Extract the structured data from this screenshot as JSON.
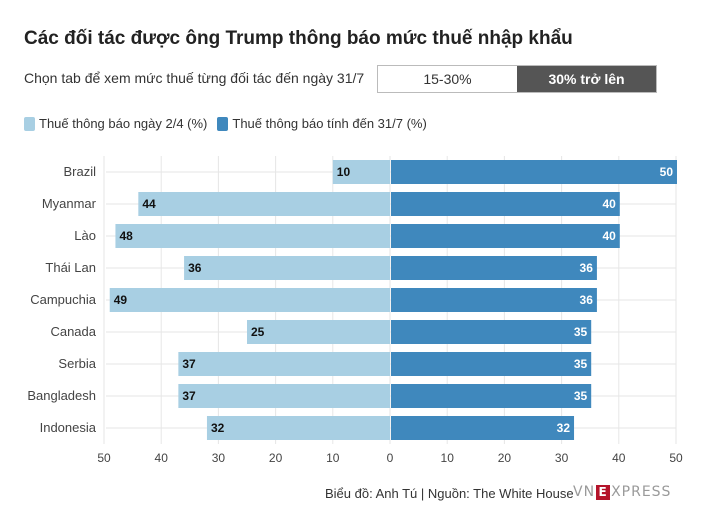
{
  "title": "Các đối tác được ông Trump thông báo mức thuế nhập khẩu",
  "tab_prompt": "Chọn tab để xem mức thuế từng đối tác đến ngày 31/7",
  "tabs": [
    {
      "label": "15-30%",
      "active": false
    },
    {
      "label": "30% trở lên",
      "active": true
    }
  ],
  "source": "Biểu đồ: Anh Tú | Nguồn: The White House",
  "logo": {
    "prefix": "VN",
    "mark": "E",
    "suffix": "XPRESS"
  },
  "colors": {
    "left": "#a8cfe3",
    "right": "#3f88bd",
    "grid": "#e6e6e6"
  },
  "chart_data": {
    "type": "bar",
    "orientation": "horizontal-diverging",
    "title": "Các đối tác được ông Trump thông báo mức thuế nhập khẩu",
    "categories": [
      "Brazil",
      "Myanmar",
      "Lào",
      "Thái Lan",
      "Campuchia",
      "Canada",
      "Serbia",
      "Bangladesh",
      "Indonesia"
    ],
    "series": [
      {
        "name": "Thuế thông báo ngày 2/4 (%)",
        "side": "left",
        "values": [
          10,
          44,
          48,
          36,
          49,
          25,
          37,
          37,
          32
        ]
      },
      {
        "name": "Thuế thông báo tính đến 31/7 (%)",
        "side": "right",
        "values": [
          50,
          40,
          40,
          36,
          36,
          35,
          35,
          35,
          32
        ]
      }
    ],
    "xlim": [
      -50,
      50
    ],
    "xticks": [
      "50",
      "40",
      "30",
      "20",
      "10",
      "0",
      "10",
      "20",
      "30",
      "40",
      "50"
    ],
    "grid": true,
    "legend_position": "top-left"
  }
}
